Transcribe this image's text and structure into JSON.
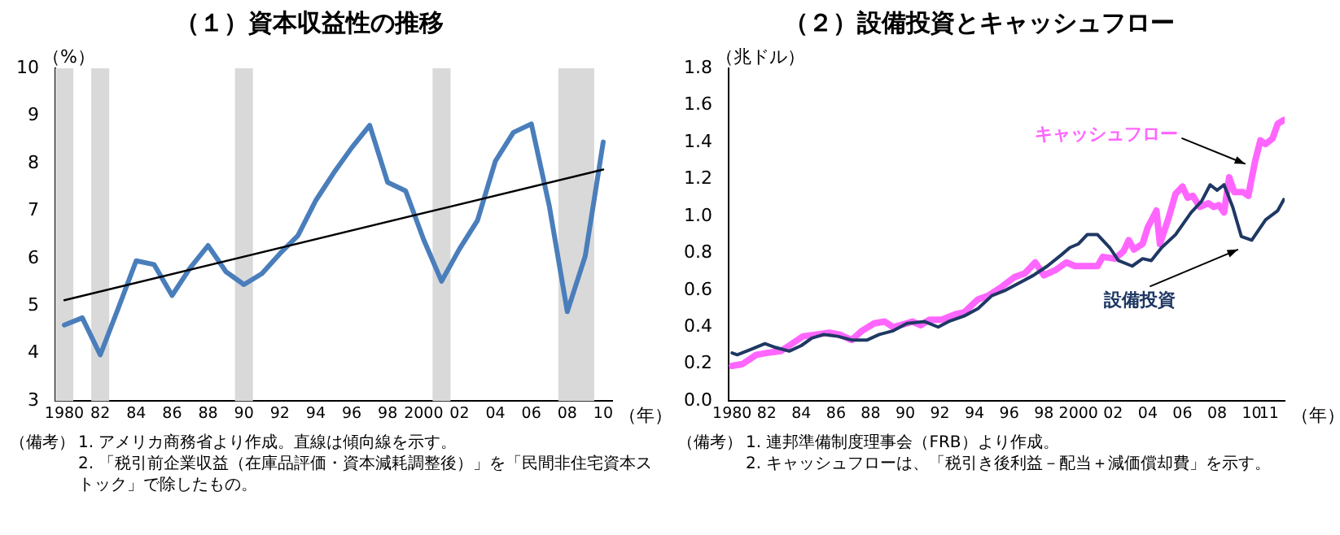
{
  "chart_data": [
    {
      "type": "line",
      "title": "（１）資本収益性の推移",
      "ylabel": "（%）",
      "xlabel": "（年）",
      "x": [
        1980,
        1981,
        1982,
        1983,
        1984,
        1985,
        1986,
        1987,
        1988,
        1989,
        1990,
        1991,
        1992,
        1993,
        1994,
        1995,
        1996,
        1997,
        1998,
        1999,
        2000,
        2001,
        2002,
        2003,
        2004,
        2005,
        2006,
        2007,
        2008,
        2009,
        2010
      ],
      "series": [
        {
          "color": "#4a7ebb",
          "values": [
            4.6,
            4.75,
            3.97,
            4.95,
            5.95,
            5.87,
            5.22,
            5.8,
            6.27,
            5.72,
            5.45,
            5.68,
            6.1,
            6.48,
            7.22,
            7.8,
            8.33,
            8.8,
            7.6,
            7.42,
            6.4,
            5.52,
            6.2,
            6.8,
            8.05,
            8.65,
            8.83,
            7.1,
            4.88,
            6.05,
            8.45
          ]
        },
        {
          "type": "line",
          "color": "#000000",
          "x": [
            1980,
            2010
          ],
          "values": [
            5.12,
            7.87
          ]
        }
      ],
      "bands": [
        {
          "axis": "x",
          "from": 1979.5,
          "to": 1980.5,
          "color": "#d9d9d9"
        },
        {
          "axis": "x",
          "from": 1981.5,
          "to": 1982.5,
          "color": "#d9d9d9"
        },
        {
          "axis": "x",
          "from": 1989.5,
          "to": 1990.5,
          "color": "#d9d9d9"
        },
        {
          "axis": "x",
          "from": 2000.5,
          "to": 2001.5,
          "color": "#d9d9d9"
        },
        {
          "axis": "x",
          "from": 2007.5,
          "to": 2009.5,
          "color": "#d9d9d9"
        }
      ],
      "xlim": [
        1979.5,
        2010.5
      ],
      "xticks": [
        {
          "value": 1980,
          "label": "1980"
        },
        {
          "value": 1982,
          "label": "82"
        },
        {
          "value": 1984,
          "label": "84"
        },
        {
          "value": 1986,
          "label": "86"
        },
        {
          "value": 1988,
          "label": "88"
        },
        {
          "value": 1990,
          "label": "90"
        },
        {
          "value": 1992,
          "label": "92"
        },
        {
          "value": 1994,
          "label": "94"
        },
        {
          "value": 1996,
          "label": "96"
        },
        {
          "value": 1998,
          "label": "98"
        },
        {
          "value": 2000,
          "label": "2000"
        },
        {
          "value": 2002,
          "label": "02"
        },
        {
          "value": 2004,
          "label": "04"
        },
        {
          "value": 2006,
          "label": "06"
        },
        {
          "value": 2008,
          "label": "08"
        },
        {
          "value": 2010,
          "label": "10"
        }
      ],
      "ylim": [
        3,
        10
      ],
      "yticks": [
        3,
        4,
        5,
        6,
        7,
        8,
        9,
        10
      ],
      "grid": false,
      "legend": false,
      "marker": "none",
      "annotations": [
        "（備考）",
        "1. アメリカ商務省より作成。直線は傾向線を示す。",
        "2. 「税引前企業収益（在庫品評価・資本減耗調整後）」を「民間非住宅資本ストック」で除したもの。"
      ]
    },
    {
      "type": "line",
      "title": "（２）設備投資とキャッシュフロー",
      "ylabel": "（兆ドル）",
      "xlabel": "（年）",
      "series": [
        {
          "name": "キャッシュフロー",
          "color": "#ff66ff",
          "x": [
            1980.0,
            1980.6,
            1981.4,
            1982.0,
            1982.8,
            1983.3,
            1984.1,
            1984.9,
            1985.6,
            1986.2,
            1986.9,
            1987.5,
            1988.2,
            1988.8,
            1989.3,
            1990.1,
            1990.4,
            1990.9,
            1991.4,
            1992.1,
            1992.9,
            1993.4,
            1994.2,
            1994.8,
            1995.6,
            1996.3,
            1996.9,
            1997.5,
            1998.0,
            1998.7,
            1999.3,
            1999.8,
            2000.5,
            2001.1,
            2001.4,
            2002.1,
            2002.6,
            2002.9,
            2003.2,
            2003.7,
            2004.0,
            2004.5,
            2004.7,
            2005.2,
            2005.6,
            2006.0,
            2006.3,
            2006.6,
            2007.0,
            2007.5,
            2007.8,
            2008.1,
            2008.4,
            2008.7,
            2009.0,
            2009.5,
            2009.8,
            2010.2,
            2010.5,
            2010.8,
            2011.2,
            2011.5,
            2011.85
          ],
          "values": [
            0.19,
            0.2,
            0.25,
            0.26,
            0.27,
            0.3,
            0.35,
            0.36,
            0.37,
            0.36,
            0.33,
            0.38,
            0.42,
            0.43,
            0.4,
            0.42,
            0.43,
            0.41,
            0.44,
            0.44,
            0.47,
            0.48,
            0.55,
            0.57,
            0.62,
            0.67,
            0.69,
            0.75,
            0.68,
            0.71,
            0.75,
            0.73,
            0.73,
            0.73,
            0.78,
            0.77,
            0.81,
            0.87,
            0.82,
            0.85,
            0.94,
            1.03,
            0.85,
            0.99,
            1.12,
            1.16,
            1.1,
            1.11,
            1.05,
            1.07,
            1.05,
            1.06,
            1.02,
            1.21,
            1.13,
            1.13,
            1.11,
            1.3,
            1.41,
            1.39,
            1.42,
            1.5,
            1.52
          ]
        },
        {
          "name": "設備投資",
          "color": "#1f3864",
          "x": [
            1980.0,
            1980.3,
            1981.1,
            1981.9,
            1982.5,
            1983.3,
            1984.0,
            1984.6,
            1985.3,
            1986.1,
            1986.9,
            1987.8,
            1988.5,
            1989.3,
            1990.1,
            1991.1,
            1991.9,
            1992.5,
            1993.4,
            1994.2,
            1995.0,
            1995.8,
            1996.6,
            1997.4,
            1998.2,
            1999.0,
            1999.5,
            2000.0,
            2000.5,
            2001.1,
            2001.8,
            2002.3,
            2003.1,
            2003.7,
            2004.2,
            2004.8,
            2005.6,
            2006.5,
            2007.1,
            2007.6,
            2008.0,
            2008.4,
            2008.9,
            2009.4,
            2010.0,
            2010.8,
            2011.5,
            2011.85
          ],
          "values": [
            0.26,
            0.25,
            0.28,
            0.31,
            0.29,
            0.27,
            0.3,
            0.34,
            0.36,
            0.35,
            0.33,
            0.33,
            0.36,
            0.38,
            0.42,
            0.43,
            0.4,
            0.43,
            0.46,
            0.5,
            0.57,
            0.6,
            0.64,
            0.68,
            0.73,
            0.79,
            0.83,
            0.85,
            0.9,
            0.9,
            0.83,
            0.76,
            0.73,
            0.77,
            0.76,
            0.83,
            0.9,
            1.02,
            1.08,
            1.17,
            1.14,
            1.17,
            1.05,
            0.89,
            0.87,
            0.98,
            1.03,
            1.09
          ]
        }
      ],
      "xlim": [
        1979.8,
        2011.9
      ],
      "xticks": [
        {
          "value": 1980,
          "label": "1980"
        },
        {
          "value": 1982,
          "label": "82"
        },
        {
          "value": 1984,
          "label": "84"
        },
        {
          "value": 1986,
          "label": "86"
        },
        {
          "value": 1988,
          "label": "88"
        },
        {
          "value": 1990,
          "label": "90"
        },
        {
          "value": 1992,
          "label": "92"
        },
        {
          "value": 1994,
          "label": "94"
        },
        {
          "value": 1996,
          "label": "96"
        },
        {
          "value": 1998,
          "label": "98"
        },
        {
          "value": 2000,
          "label": "2000"
        },
        {
          "value": 2002,
          "label": "02"
        },
        {
          "value": 2004,
          "label": "04"
        },
        {
          "value": 2006,
          "label": "06"
        },
        {
          "value": 2008,
          "label": "08"
        },
        {
          "value": 2010,
          "label": "10"
        },
        {
          "value": 2011,
          "label": "11"
        }
      ],
      "ylim": [
        0,
        1.8
      ],
      "yticks": [
        {
          "value": 0,
          "label": "0.0"
        },
        {
          "value": 0.2,
          "label": "0.2"
        },
        {
          "value": 0.4,
          "label": "0.4"
        },
        {
          "value": 0.6,
          "label": "0.6"
        },
        {
          "value": 0.8,
          "label": "0.8"
        },
        {
          "value": 1,
          "label": "1.0"
        },
        {
          "value": 1.2,
          "label": "1.2"
        },
        {
          "value": 1.4,
          "label": "1.4"
        },
        {
          "value": 1.6,
          "label": "1.6"
        },
        {
          "value": 1.8,
          "label": "1.8"
        }
      ],
      "grid": false,
      "legend": false,
      "marker": "none",
      "annotations": [
        "（備考）",
        "1. 連邦準備制度理事会（FRB）より作成。",
        "2. キャッシュフローは、「税引き後利益－配当＋減価償却費」を示す。"
      ]
    }
  ]
}
